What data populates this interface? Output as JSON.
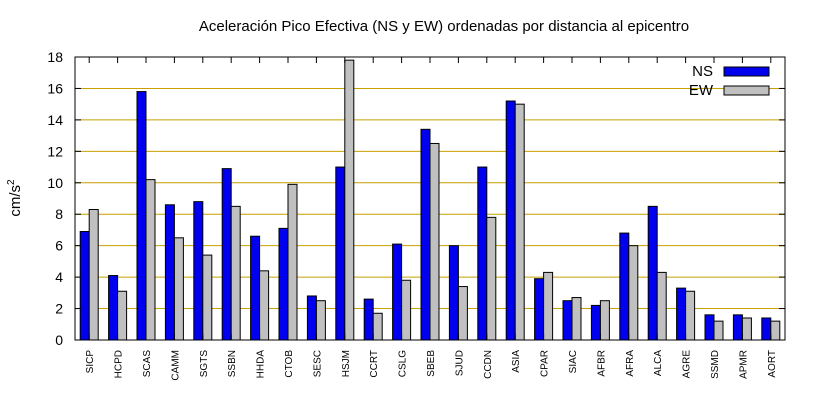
{
  "chart_data": {
    "type": "bar",
    "title": "Aceleración Pico Efectiva (NS y EW) ordenadas por distancia al epicentro",
    "xlabel": "",
    "ylabel_base": "cm/s",
    "ylabel_exp": "2",
    "ylim": [
      0,
      18
    ],
    "yticks": [
      "0",
      "2",
      "4",
      "6",
      "8",
      "10",
      "12",
      "14",
      "16",
      "18"
    ],
    "grid": true,
    "legend_position": "top-right",
    "categories": [
      "SICP",
      "HCPD",
      "SCAS",
      "CAMM",
      "SGTS",
      "SSBN",
      "HHDA",
      "CTOB",
      "SESC",
      "HSJM",
      "CCRT",
      "CSLG",
      "SBEB",
      "SJUD",
      "CCDN",
      "ASIA",
      "CPAR",
      "SIAC",
      "AFBR",
      "AFRA",
      "ALCA",
      "AGRE",
      "SSMD",
      "APMR",
      "AORT"
    ],
    "series": [
      {
        "name": "NS",
        "color": "#0000ee",
        "values": [
          6.9,
          4.1,
          15.8,
          8.6,
          8.8,
          10.9,
          6.6,
          7.1,
          2.8,
          11.0,
          2.6,
          6.1,
          13.4,
          6.0,
          11.0,
          15.2,
          3.9,
          2.5,
          2.2,
          6.8,
          8.5,
          3.3,
          1.6,
          1.6,
          1.4
        ]
      },
      {
        "name": "EW",
        "color": "#c0c0c0",
        "values": [
          8.3,
          3.1,
          10.2,
          6.5,
          5.4,
          8.5,
          4.4,
          9.9,
          2.5,
          17.8,
          1.7,
          3.8,
          12.5,
          3.4,
          7.8,
          15.0,
          4.3,
          2.7,
          2.5,
          6.0,
          4.3,
          3.1,
          1.2,
          1.4,
          1.2
        ]
      }
    ],
    "grid_color": "#c8a000",
    "bar_stroke": "#000000"
  }
}
